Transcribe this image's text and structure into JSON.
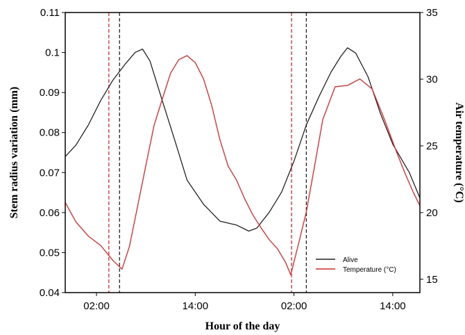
{
  "chart_data": {
    "type": "line",
    "xlabel": "Hour of the day",
    "ylabel_left": "Stem radius variation (mm)",
    "ylabel_right": "Air temperature (°C)",
    "x_unit": "hours elapsed",
    "xlim": [
      -1.8,
      41.3
    ],
    "x_ticks": [
      {
        "x": 2,
        "label": "02:00"
      },
      {
        "x": 14,
        "label": "14:00"
      },
      {
        "x": 26,
        "label": "02:00"
      },
      {
        "x": 38,
        "label": "14:00"
      }
    ],
    "ylim_left": [
      0.04,
      0.11
    ],
    "y_ticks_left": [
      "0.04",
      "0.05",
      "0.06",
      "0.07",
      "0.08",
      "0.09",
      "0.1",
      "0.11"
    ],
    "ylim_right": [
      14,
      35
    ],
    "y_ticks_right": [
      "15",
      "20",
      "25",
      "30",
      "35"
    ],
    "grid": false,
    "legend_position": "bottom-right",
    "series": [
      {
        "name": "Alive",
        "axis": "left",
        "color": "#222222",
        "x": [
          -1.8,
          -0.5,
          1,
          2.5,
          4,
          5.5,
          6.7,
          7.6,
          8.5,
          10,
          11.5,
          13,
          15,
          17,
          19,
          20.5,
          21.5,
          23,
          24.5,
          26,
          27.5,
          29,
          30.5,
          31.7,
          32.5,
          33.5,
          35,
          36.5,
          38,
          40,
          42,
          43.5,
          44.7,
          46
        ],
        "y": [
          0.074,
          0.077,
          0.082,
          0.088,
          0.093,
          0.097,
          0.1,
          0.101,
          0.098,
          0.088,
          0.078,
          0.068,
          0.062,
          0.058,
          0.057,
          0.0555,
          0.056,
          0.06,
          0.065,
          0.073,
          0.082,
          0.089,
          0.095,
          0.099,
          0.101,
          0.1,
          0.094,
          0.085,
          0.077,
          0.07,
          0.06,
          0.056,
          0.0555,
          0.056
        ]
      },
      {
        "name": "Temperature (°C)",
        "axis": "right",
        "color": "#ee2222",
        "x": [
          -1.8,
          -0.5,
          1,
          2.5,
          4,
          5.1,
          6,
          7,
          8,
          9,
          10,
          11,
          12,
          13,
          14,
          15,
          16,
          17,
          18,
          19,
          20,
          21,
          22,
          23,
          24,
          25,
          25.6,
          26.5,
          27.5,
          28.5,
          29.5,
          31,
          32.5,
          34,
          35.5,
          37,
          38.5,
          39.5,
          40.5,
          41.3
        ],
        "y": [
          20.8,
          19.3,
          18.2,
          17.5,
          16.4,
          15.8,
          17.5,
          20.5,
          23.5,
          26.5,
          28.5,
          30.5,
          31.5,
          31.8,
          31.2,
          30,
          28,
          25.5,
          23.5,
          22.5,
          21,
          19.8,
          18.8,
          18,
          17.3,
          16.3,
          15.3,
          17.5,
          20,
          23.5,
          27,
          29.5,
          29.5,
          30,
          29.2,
          27,
          24.5,
          23,
          21.5,
          20.5
        ]
      }
    ],
    "annotations": [
      {
        "type": "vline",
        "x": 3.5,
        "color": "#ee2222",
        "style": "dashed"
      },
      {
        "type": "vline",
        "x": 4.8,
        "color": "#222222",
        "style": "dashed"
      },
      {
        "type": "vline",
        "x": 25.7,
        "color": "#ee2222",
        "style": "dashed"
      },
      {
        "type": "vline",
        "x": 27.5,
        "color": "#222222",
        "style": "dashed"
      }
    ]
  }
}
